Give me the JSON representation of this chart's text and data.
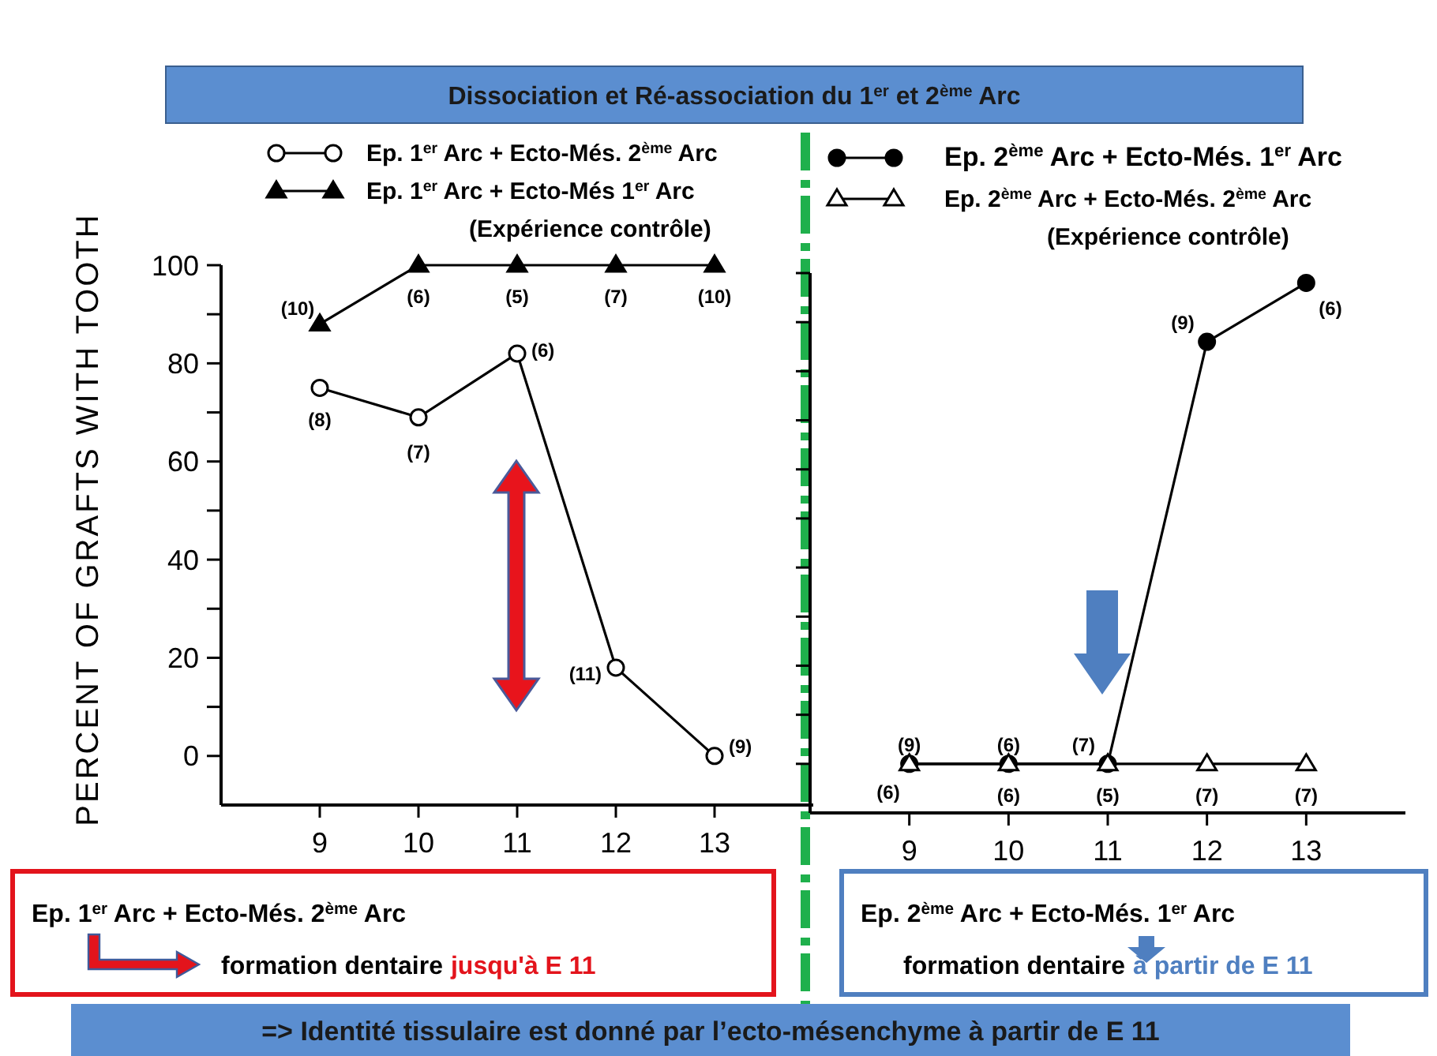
{
  "chart_data": [
    {
      "type": "line",
      "title": "Dissociation et Ré-association du 1$^{er}$  et 2$^{ème}$ Arc",
      "ylabel": "PERCENT OF GRAFTS WITH TOOTH",
      "x": [
        9,
        10,
        11,
        12,
        13
      ],
      "xlim": [
        8,
        14
      ],
      "xticks": [
        9,
        10,
        11,
        12,
        13
      ],
      "ylim": [
        -10,
        100
      ],
      "yticks": [
        0,
        {
          "value": 10,
          "label": null
        },
        20,
        {
          "value": 30,
          "label": null
        },
        40,
        {
          "value": 50,
          "label": null
        },
        60,
        {
          "value": 70,
          "label": null
        },
        80,
        {
          "value": 90,
          "label": null
        },
        100
      ],
      "legend": "top",
      "grid": false,
      "series": [
        {
          "name": "Ep. 1$^{er}$ Arc + Ecto-Més. 2$^{ème}$ Arc",
          "color": "#000000",
          "marker": "circle",
          "values": [
            75,
            69,
            82,
            18,
            0
          ]
        },
        {
          "name": "Ep. 1$^{er}$ Arc + Ecto-Més 1$^{er}$ Arc\n(Expérience contrôle)",
          "color": "#000000",
          "marker": "triangle",
          "values": [
            88,
            100,
            100,
            100,
            100
          ]
        }
      ],
      "annotations": [
        "Ep. 1$^{er}$ Arc + Ecto-Més. 2$^{ème}$ Arc",
        "formation dentaire",
        "jusqu'à E 11",
        {
          "text": "(8)",
          "x": 9,
          "y": 75
        },
        {
          "text": "(7)",
          "x": 10,
          "y": 69
        },
        {
          "text": "(6)",
          "x": 11,
          "y": 82
        },
        {
          "text": "(11)",
          "x": 12,
          "y": 18
        },
        {
          "text": "(9)",
          "x": 13,
          "y": 0
        },
        {
          "text": "(10)",
          "x": 9,
          "y": 88
        },
        {
          "text": "(6)",
          "x": 10,
          "y": 100
        },
        {
          "text": "(5)",
          "x": 11,
          "y": 100
        },
        {
          "text": "(7)",
          "x": 12,
          "y": 100
        },
        {
          "text": "(10)",
          "x": 13,
          "y": 100
        }
      ]
    },
    {
      "type": "line",
      "x": [
        9,
        10,
        11,
        12,
        13
      ],
      "xlim": [
        8,
        14
      ],
      "xticks": [
        9,
        10,
        11,
        12,
        13
      ],
      "ylim": [
        -10,
        100
      ],
      "yticks": [
        0,
        10,
        20,
        30,
        40,
        50,
        60,
        70,
        80,
        90,
        100
      ],
      "tick_labels": "x",
      "legend": "top",
      "grid": false,
      "series": [
        {
          "name": "Ep.  2$^{ème}$ Arc + Ecto-Més. 1$^{er}$ Arc",
          "color": "#000000",
          "marker": "circle",
          "values": [
            0,
            0,
            0,
            86,
            98
          ]
        },
        {
          "name": "Ep.  2$^{ème}$ Arc + Ecto-Més. 2$^{ème}$  Arc\n(Expérience contrôle)",
          "color": "#000000",
          "marker": "triangle",
          "values": [
            0,
            0,
            0,
            0,
            0
          ]
        }
      ],
      "annotations": [
        "Ep.  2$^{ème}$ Arc + Ecto-Més. 1$^{er}$ Arc",
        "formation dentaire",
        "à partir de E 11",
        "=> Identité tissulaire est donné par l’ecto-mésenchyme à partir de E 11",
        {
          "text": "(9)",
          "x": 9,
          "y": 0
        },
        {
          "text": "(6)",
          "x": 10,
          "y": 0
        },
        {
          "text": "(7)",
          "x": 11,
          "y": 0
        },
        {
          "text": "(9)",
          "x": 12,
          "y": 86
        },
        {
          "text": "(6)",
          "x": 13,
          "y": 98
        },
        {
          "text": "(6)",
          "x": 9,
          "y": 0
        },
        {
          "text": "(6)",
          "x": 10,
          "y": 0
        },
        {
          "text": "(5)",
          "x": 11,
          "y": 0
        },
        {
          "text": "(7)",
          "x": 12,
          "y": 0
        },
        {
          "text": "(7)",
          "x": 13,
          "y": 0
        }
      ]
    }
  ]
}
